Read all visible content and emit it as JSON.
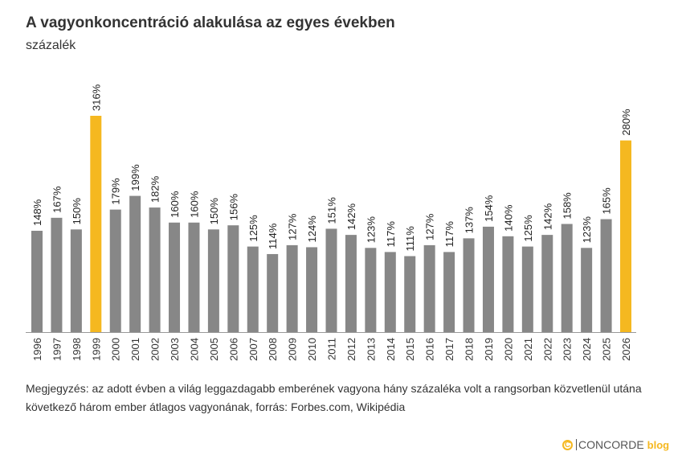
{
  "chart_data": {
    "type": "bar",
    "title": "A vagyonkoncentráció alakulása az egyes években",
    "subtitle": "százalék",
    "categories": [
      "1996",
      "1997",
      "1998",
      "1999",
      "2000",
      "2001",
      "2002",
      "2003",
      "2004",
      "2005",
      "2006",
      "2007",
      "2008",
      "2009",
      "2010",
      "2011",
      "2012",
      "2013",
      "2014",
      "2015",
      "2016",
      "2017",
      "2018",
      "2019",
      "2020",
      "2021",
      "2022",
      "2023",
      "2024",
      "2025",
      "2026"
    ],
    "values": [
      148,
      167,
      150,
      316,
      179,
      199,
      182,
      160,
      160,
      150,
      156,
      125,
      114,
      127,
      124,
      151,
      142,
      123,
      117,
      111,
      127,
      117,
      137,
      154,
      140,
      125,
      142,
      158,
      123,
      165,
      280
    ],
    "highlighted": [
      "1999",
      "2026"
    ],
    "label_suffix": "%",
    "ylim": [
      0,
      340
    ],
    "grid": false,
    "colors": {
      "default": "#878787",
      "highlight": "#f5b820"
    }
  },
  "note": "Megjegyzés: az adott évben a világ leggazdagabb emberének vagyona hány százaléka volt a rangsorban közvetlenül utána következő három ember átlagos vagyonának, forrás: Forbes.com, Wikipédia",
  "logo": {
    "icon": "copyright-c-icon",
    "brand": "CONCORDE",
    "suffix": "blog"
  }
}
